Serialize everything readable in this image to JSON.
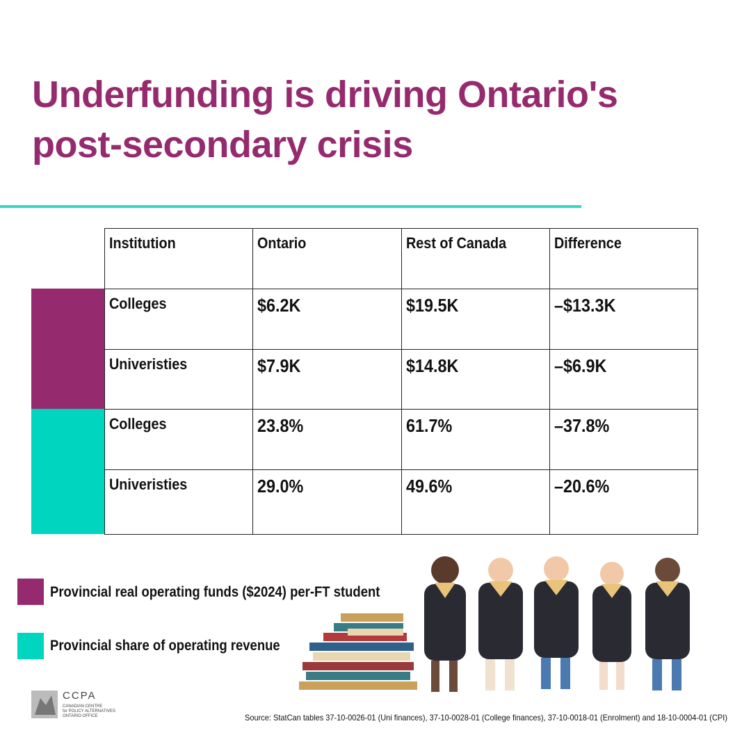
{
  "header": {
    "title": "Underfunding is driving Ontario's post-secondary crisis"
  },
  "table": {
    "header": [
      "Institution",
      "Ontario",
      "Rest of Canada",
      "Difference"
    ],
    "rows": [
      [
        "Colleges",
        "$6.2K",
        "$19.5K",
        "–$13.3K"
      ],
      [
        "Univeristies",
        "$7.9K",
        "$14.8K",
        "–$6.9K"
      ],
      [
        "Colleges",
        "23.8%",
        "61.7%",
        "–37.8%"
      ],
      [
        "Univeristies",
        "29.0%",
        "49.6%",
        "–20.6%"
      ]
    ]
  },
  "legend": [
    {
      "label": "Provincial real operating funds  ($2024)  per-FT student"
    },
    {
      "label": "Provincial share of operating revenue"
    }
  ],
  "logo": {
    "name": "CCPA",
    "lines": [
      "CANADIAN CENTRE",
      "for POLICY ALTERNATIVES",
      "ONTARIO OFFICE"
    ]
  },
  "source": "Source: StatCan tables 37-10-0026-01 (Uni finances), 37-10-0028-01 (College finances), 37-10-0018-01 (Enrolment) and 18-10-0004-01 (CPI)"
}
